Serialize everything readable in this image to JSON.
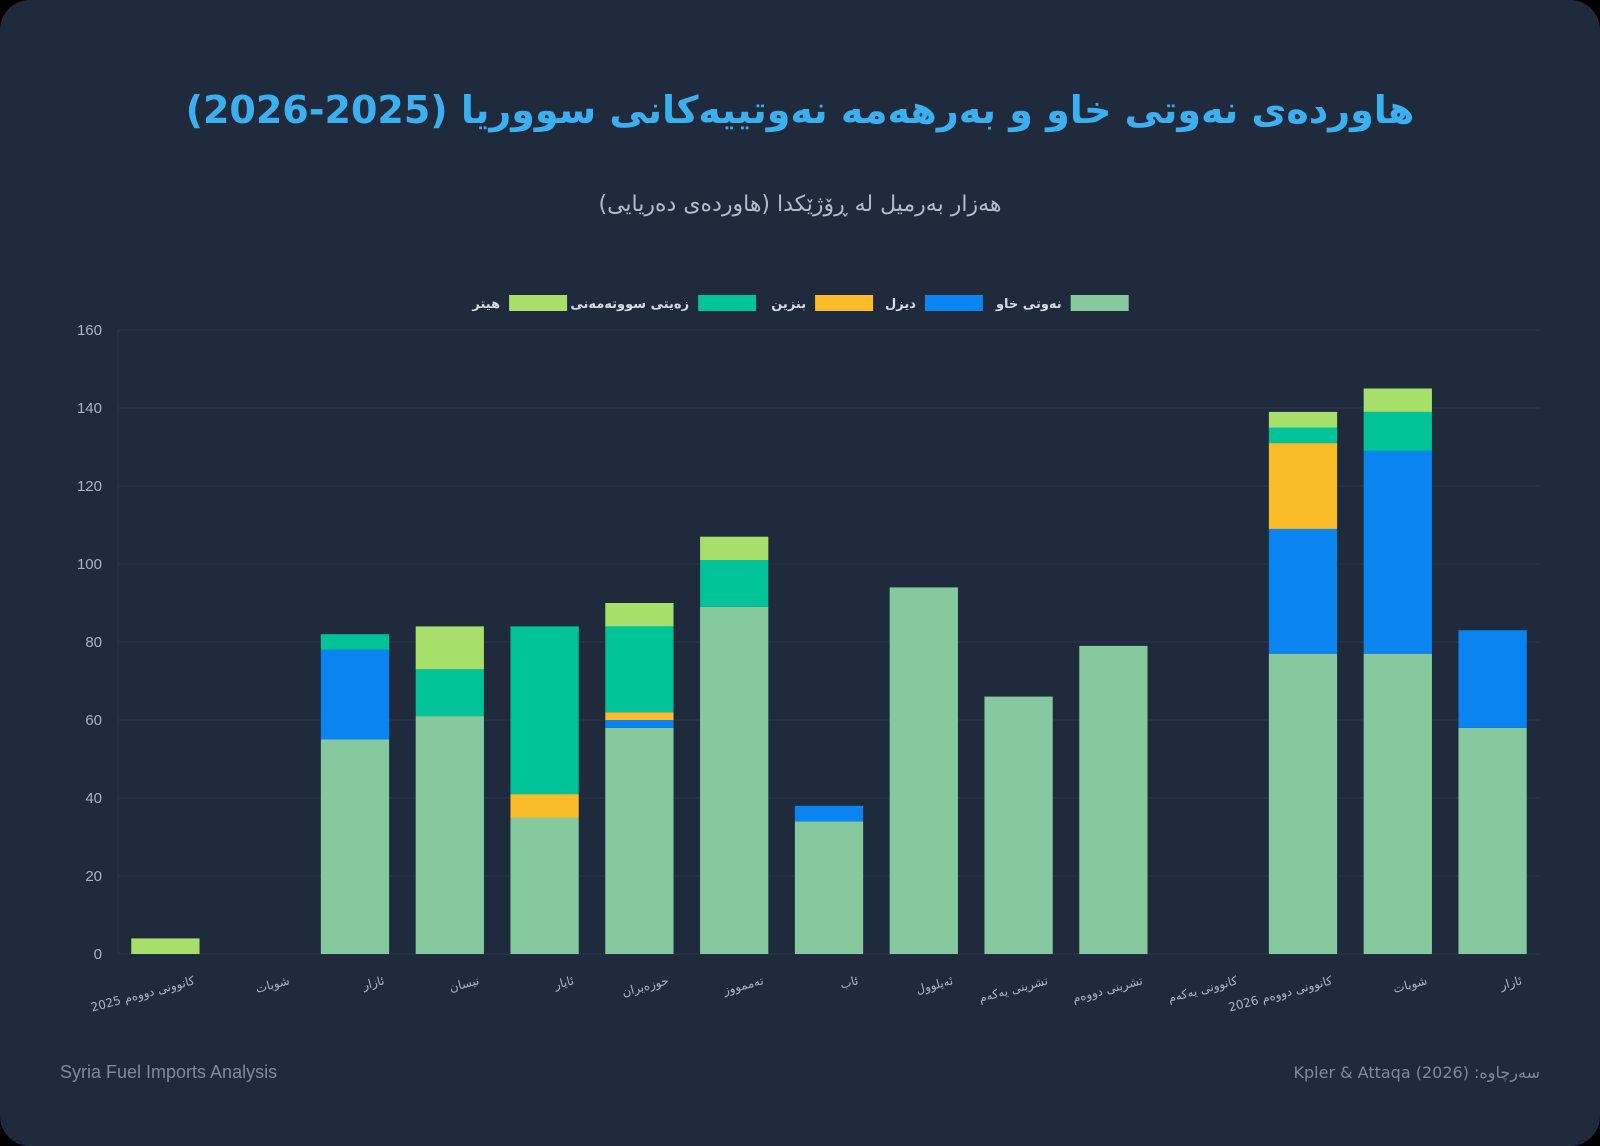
{
  "header": {
    "title": "هاوردەی نەوتی خاو و بەرهەمە نەوتییەکانی سووریا (2025-2026)",
    "subtitle": "هەزار بەرمیل لە ڕۆژێکدا (هاوردەی دەریایی)"
  },
  "footer": {
    "left": "Syria Fuel Imports Analysis",
    "right": "سەرچاوە: Kpler & Attaqa (2026)"
  },
  "chart_data": {
    "type": "bar",
    "stacked": true,
    "title": "هاوردەی نەوتی خاو و بەرهەمە نەوتییەکانی سووریا (2025-2026)",
    "subtitle": "هەزار بەرمیل لە ڕۆژێکدا (هاوردەی دەریایی)",
    "xlabel": "",
    "ylabel": "",
    "ylim": [
      0,
      160
    ],
    "yticks": [
      0,
      20,
      40,
      60,
      80,
      100,
      120,
      140,
      160
    ],
    "grid": true,
    "legend_position": "top-center",
    "categories": [
      "کانوونی دووەم 2025",
      "شوبات",
      "ئازار",
      "نیسان",
      "ئایار",
      "حوزەیران",
      "تەممووز",
      "ئاب",
      "ئەیلوول",
      "تشرینی یەکەم",
      "تشرینی دووەم",
      "کانوونی یەکەم",
      "کانوونی دووەم 2026",
      "شوبات",
      "ئازار"
    ],
    "series": [
      {
        "name": "نەوتی خاو",
        "color": "#86c99e",
        "values": [
          0,
          0,
          55,
          61,
          35,
          58,
          89,
          34,
          94,
          66,
          79,
          0,
          77,
          77,
          58
        ]
      },
      {
        "name": "دیزل",
        "color": "#0a84f0",
        "values": [
          0,
          0,
          23,
          0,
          0,
          2,
          0,
          4,
          0,
          0,
          0,
          0,
          32,
          52,
          25
        ]
      },
      {
        "name": "بنزین",
        "color": "#fbbc2a",
        "values": [
          0,
          0,
          0,
          0,
          6,
          2,
          0,
          0,
          0,
          0,
          0,
          0,
          22,
          0,
          0
        ]
      },
      {
        "name": "زەیتی سووتەمەنی",
        "color": "#00c39a",
        "values": [
          0,
          0,
          4,
          12,
          43,
          22,
          12,
          0,
          0,
          0,
          0,
          0,
          4,
          10,
          0
        ]
      },
      {
        "name": "هیتر",
        "color": "#a6e06a",
        "values": [
          4,
          0,
          0,
          11,
          0,
          6,
          6,
          0,
          0,
          0,
          0,
          0,
          4,
          6,
          0
        ]
      }
    ]
  }
}
